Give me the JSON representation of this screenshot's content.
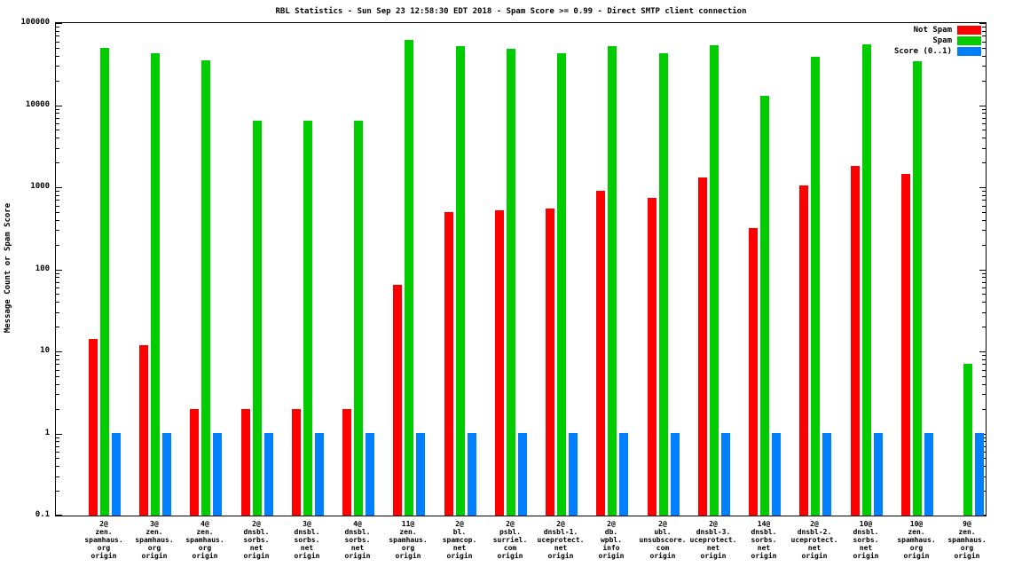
{
  "chart_data": {
    "type": "bar",
    "title": "RBL Statistics - Sun Sep 23 12:58:30 EDT 2018 - Spam Score >= 0.99 - Direct SMTP client connection",
    "xlabel": "",
    "ylabel": "Message Count or Spam Score",
    "y_scale": "log",
    "ylim": [
      0.1,
      100000
    ],
    "yticks": [
      0.1,
      1,
      10,
      100,
      1000,
      10000,
      100000
    ],
    "ytick_labels": [
      "0.1",
      "1",
      "10",
      "100",
      "1000",
      "10000",
      "100000"
    ],
    "grid": false,
    "legend_position": "top-right",
    "categories": [
      [
        "2@",
        "zen.",
        "spamhaus.",
        "org",
        "origin"
      ],
      [
        "3@",
        "zen.",
        "spamhaus.",
        "org",
        "origin"
      ],
      [
        "4@",
        "zen.",
        "spamhaus.",
        "org",
        "origin"
      ],
      [
        "2@",
        "dnsbl.",
        "sorbs.",
        "net",
        "origin"
      ],
      [
        "3@",
        "dnsbl.",
        "sorbs.",
        "net",
        "origin"
      ],
      [
        "4@",
        "dnsbl.",
        "sorbs.",
        "net",
        "origin"
      ],
      [
        "11@",
        "zen.",
        "spamhaus.",
        "org",
        "origin"
      ],
      [
        "2@",
        "bl.",
        "spamcop.",
        "net",
        "origin"
      ],
      [
        "2@",
        "psbl.",
        "surriel.",
        "com",
        "origin"
      ],
      [
        "2@",
        "dnsbl-1.",
        "uceprotect.",
        "net",
        "origin"
      ],
      [
        "2@",
        "db.",
        "wpbl.",
        "info",
        "origin"
      ],
      [
        "2@",
        "ubl.",
        "unsubscore.",
        "com",
        "origin"
      ],
      [
        "2@",
        "dnsbl-3.",
        "uceprotect.",
        "net",
        "origin"
      ],
      [
        "14@",
        "dnsbl.",
        "sorbs.",
        "net",
        "origin"
      ],
      [
        "2@",
        "dnsbl-2.",
        "uceprotect.",
        "net",
        "origin"
      ],
      [
        "10@",
        "dnsbl.",
        "sorbs.",
        "net",
        "origin"
      ],
      [
        "10@",
        "zen.",
        "spamhaus.",
        "org",
        "origin"
      ],
      [
        "9@",
        "zen.",
        "spamhaus.",
        "org",
        "origin"
      ]
    ],
    "series": [
      {
        "name": "Not Spam",
        "color": "#ff0000",
        "values": [
          14,
          12,
          2,
          2,
          2,
          2,
          65,
          500,
          520,
          550,
          900,
          750,
          1300,
          320,
          1050,
          1800,
          1450,
          null
        ]
      },
      {
        "name": "Spam",
        "color": "#00cc00",
        "values": [
          50000,
          43000,
          35000,
          6500,
          6500,
          6500,
          62000,
          52000,
          48000,
          43000,
          52000,
          43000,
          54000,
          13000,
          39000,
          55000,
          34000,
          7
        ]
      },
      {
        "name": "Score (0..1)",
        "color": "#0080ff",
        "values": [
          1,
          1,
          1,
          1,
          1,
          1,
          1,
          1,
          1,
          1,
          1,
          1,
          1,
          1,
          1,
          1,
          1,
          1
        ]
      }
    ]
  }
}
